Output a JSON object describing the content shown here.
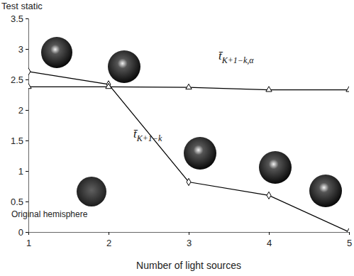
{
  "chart_data": {
    "type": "line",
    "x_label": "Number of light sources",
    "y_label": "Test static",
    "annotations": [
      "Original hemisphere"
    ],
    "x": [
      1,
      2,
      3,
      4,
      5
    ],
    "xlim": [
      1,
      5
    ],
    "xticks": [
      1,
      2,
      3,
      4,
      5
    ],
    "ylim": [
      0,
      3.5
    ],
    "yticks": [
      0,
      0.5,
      1,
      1.5,
      2,
      2.5,
      3,
      3.5
    ],
    "grid": false,
    "series": [
      {
        "name": "t̄K+1−k",
        "color": "#000000",
        "marker": "diamond",
        "line_style": "solid",
        "values": [
          2.63,
          2.42,
          0.82,
          0.6,
          0.0
        ]
      },
      {
        "name": "t̄K+1−k,α",
        "color": "#000000",
        "marker": "triangle",
        "line_style": "solid",
        "values": [
          2.38,
          2.38,
          2.37,
          2.33,
          2.33
        ]
      }
    ]
  }
}
